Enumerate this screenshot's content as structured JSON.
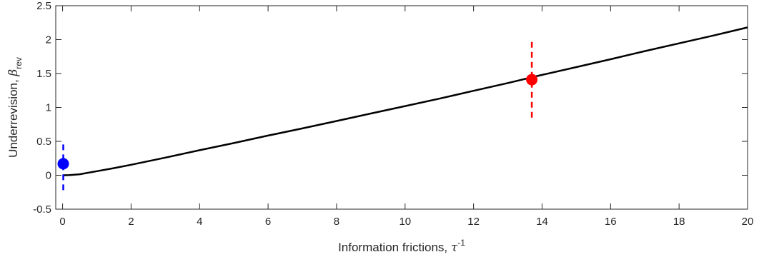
{
  "chart_data": {
    "type": "line",
    "xlabel": {
      "text": "Information frictions, ",
      "symbol": "τ",
      "sup": "-1"
    },
    "ylabel": {
      "text": "Underrevision, ",
      "symbol": "β",
      "sub": "rev"
    },
    "xlim": [
      -0.2,
      20
    ],
    "ylim": [
      -0.5,
      2.5
    ],
    "xticks": [
      0,
      2,
      4,
      6,
      8,
      10,
      12,
      14,
      16,
      18,
      20
    ],
    "xtick_labels": [
      "0",
      "2",
      "4",
      "6",
      "8",
      "10",
      "12",
      "14",
      "16",
      "18",
      "20"
    ],
    "yticks": [
      -0.5,
      0,
      0.5,
      1,
      1.5,
      2,
      2.5
    ],
    "ytick_labels": [
      "-0.5",
      "0",
      "0.5",
      "1",
      "1.5",
      "2",
      "2.5"
    ],
    "grid": false,
    "series": [
      {
        "kind": "line",
        "color": "#000000",
        "points": [
          [
            0,
            0
          ],
          [
            0.2,
            0.003
          ],
          [
            0.5,
            0.015
          ],
          [
            1,
            0.06
          ],
          [
            1.5,
            0.105
          ],
          [
            2,
            0.155
          ],
          [
            3,
            0.26
          ],
          [
            4,
            0.37
          ],
          [
            5,
            0.475
          ],
          [
            6,
            0.585
          ],
          [
            7,
            0.69
          ],
          [
            8,
            0.8
          ],
          [
            9,
            0.91
          ],
          [
            10,
            1.02
          ],
          [
            11,
            1.13
          ],
          [
            12,
            1.245
          ],
          [
            13,
            1.36
          ],
          [
            14,
            1.48
          ],
          [
            15,
            1.595
          ],
          [
            16,
            1.71
          ],
          [
            17,
            1.83
          ],
          [
            18,
            1.945
          ],
          [
            19,
            2.06
          ],
          [
            20,
            2.18
          ]
        ]
      },
      {
        "kind": "point",
        "color": "#0000ff",
        "x": 0.02,
        "y": 0.17,
        "err_low": -0.22,
        "err_high": 0.51
      },
      {
        "kind": "point",
        "color": "#ff0000",
        "x": 13.7,
        "y": 1.41,
        "err_low": 0.85,
        "err_high": 1.98
      }
    ]
  }
}
